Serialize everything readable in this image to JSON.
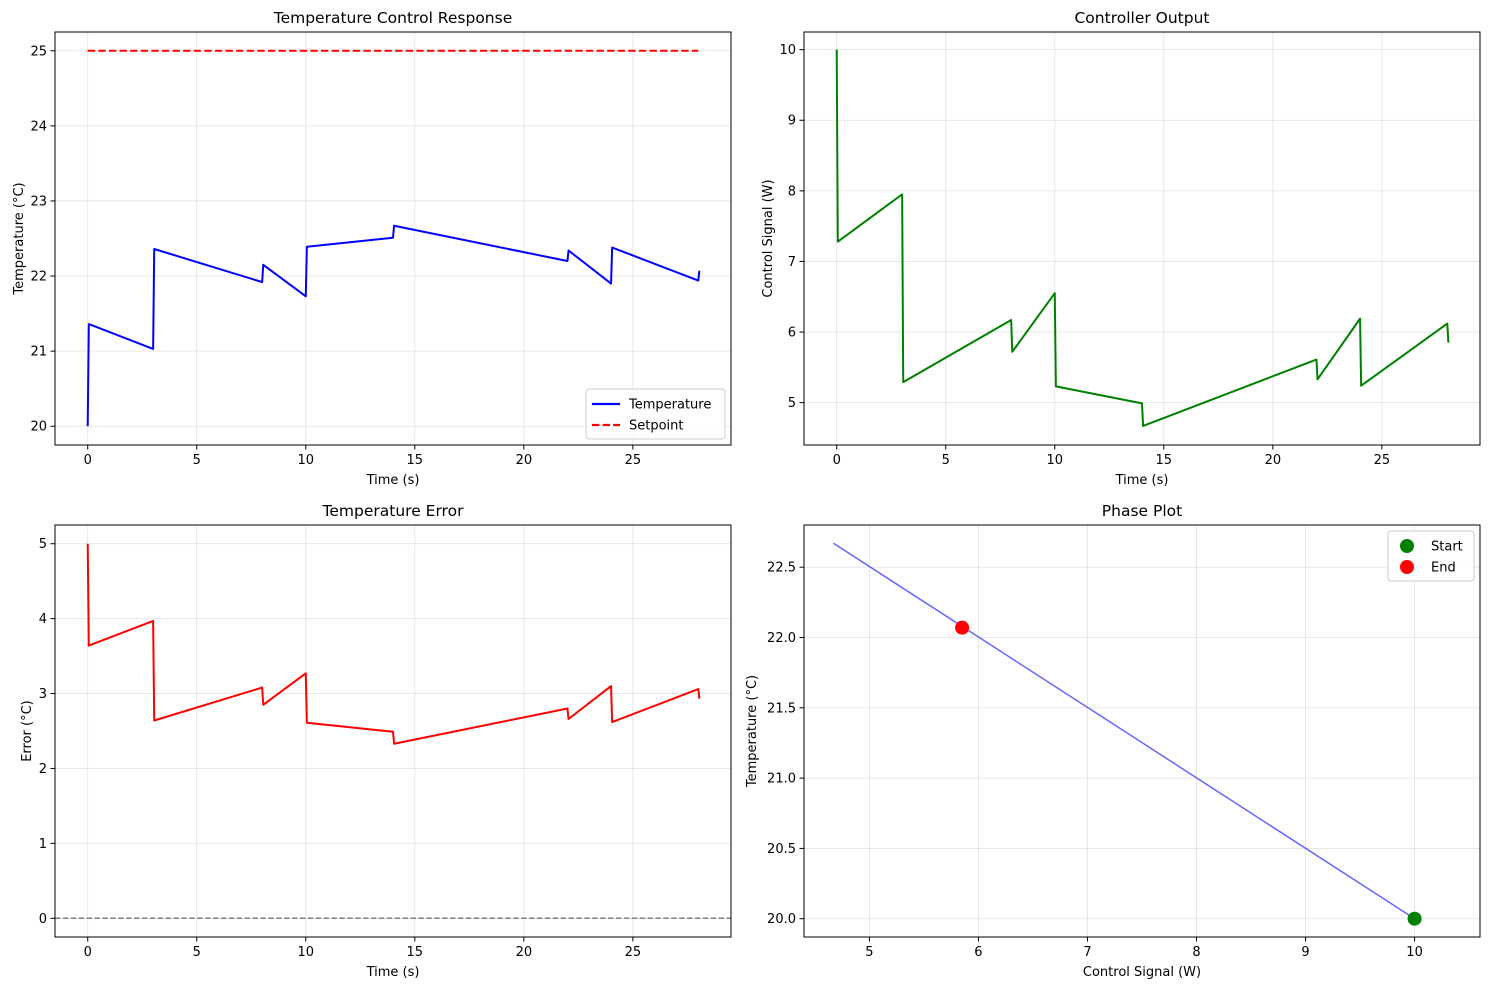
{
  "chart_data": [
    {
      "type": "line",
      "title": "Temperature Control Response",
      "xlabel": "Time (s)",
      "ylabel": "Temperature (°C)",
      "xlim": [
        -1.5,
        29.5
      ],
      "ylim": [
        19.75,
        25.25
      ],
      "xticks": [
        0,
        5,
        10,
        15,
        20,
        25
      ],
      "yticks": [
        20,
        21,
        22,
        23,
        24,
        25
      ],
      "grid": true,
      "legend": "lower-right",
      "series": [
        {
          "name": "Temperature",
          "color": "#0000ff",
          "style": "solid",
          "x": [
            0,
            0.05,
            3,
            3.05,
            8,
            8.05,
            10,
            10.05,
            14,
            14.05,
            22,
            22.05,
            24,
            24.05,
            28,
            28.05
          ],
          "y": [
            20.0,
            21.36,
            21.03,
            22.36,
            21.92,
            22.15,
            21.73,
            22.39,
            22.51,
            22.67,
            22.2,
            22.34,
            21.9,
            22.38,
            21.94,
            22.07
          ]
        },
        {
          "name": "Setpoint",
          "color": "#ff0000",
          "style": "dashed",
          "x": [
            0,
            28
          ],
          "y": [
            25,
            25
          ]
        }
      ]
    },
    {
      "type": "line",
      "title": "Controller Output",
      "xlabel": "Time (s)",
      "ylabel": "Control Signal (W)",
      "xlim": [
        -1.5,
        29.5
      ],
      "ylim": [
        4.4,
        10.25
      ],
      "xticks": [
        0,
        5,
        10,
        15,
        20,
        25
      ],
      "yticks": [
        5,
        6,
        7,
        8,
        9,
        10
      ],
      "grid": true,
      "series": [
        {
          "color": "#008000",
          "style": "solid",
          "x": [
            0,
            0.05,
            3,
            3.05,
            8,
            8.05,
            10,
            10.05,
            14,
            14.05,
            22,
            22.05,
            24,
            24.05,
            28,
            28.05
          ],
          "y": [
            10.0,
            7.28,
            7.95,
            5.29,
            6.17,
            5.72,
            6.55,
            5.23,
            4.99,
            4.67,
            5.61,
            5.33,
            6.19,
            5.24,
            6.12,
            5.85
          ]
        }
      ]
    },
    {
      "type": "line",
      "title": "Temperature Error",
      "xlabel": "Time (s)",
      "ylabel": "Error (°C)",
      "xlim": [
        -1.5,
        29.5
      ],
      "ylim": [
        -0.25,
        5.25
      ],
      "xticks": [
        0,
        5,
        10,
        15,
        20,
        25
      ],
      "yticks": [
        0,
        1,
        2,
        3,
        4,
        5
      ],
      "grid": true,
      "series": [
        {
          "color": "#ff0000",
          "style": "solid",
          "x": [
            0,
            0.05,
            3,
            3.05,
            8,
            8.05,
            10,
            10.05,
            14,
            14.05,
            22,
            22.05,
            24,
            24.05,
            28,
            28.05
          ],
          "y": [
            5.0,
            3.64,
            3.97,
            2.64,
            3.08,
            2.85,
            3.27,
            2.61,
            2.49,
            2.33,
            2.8,
            2.66,
            3.1,
            2.62,
            3.06,
            2.93
          ]
        },
        {
          "color": "#808080",
          "style": "dashed",
          "x": [
            -1.5,
            29.5
          ],
          "y": [
            0,
            0
          ]
        }
      ]
    },
    {
      "type": "scatter",
      "title": "Phase Plot",
      "xlabel": "Control Signal (W)",
      "ylabel": "Temperature (°C)",
      "xlim": [
        4.4,
        10.6
      ],
      "ylim": [
        19.87,
        22.8
      ],
      "xticks": [
        5,
        6,
        7,
        8,
        9,
        10
      ],
      "yticks": [
        20.0,
        20.5,
        21.0,
        21.5,
        22.0,
        22.5
      ],
      "ytick_labels": [
        "20.0",
        "20.5",
        "21.0",
        "21.5",
        "22.0",
        "22.5"
      ],
      "grid": true,
      "legend": "top-right",
      "series": [
        {
          "color": "#4b4bff",
          "style": "solid",
          "x": [
            10.0,
            4.67
          ],
          "y": [
            20.0,
            22.67
          ]
        },
        {
          "name": "Start",
          "color": "#008000",
          "style": "marker",
          "x": [
            10.0
          ],
          "y": [
            20.0
          ]
        },
        {
          "name": "End",
          "color": "#ff0000",
          "style": "marker",
          "x": [
            5.85
          ],
          "y": [
            22.07
          ]
        }
      ]
    }
  ]
}
